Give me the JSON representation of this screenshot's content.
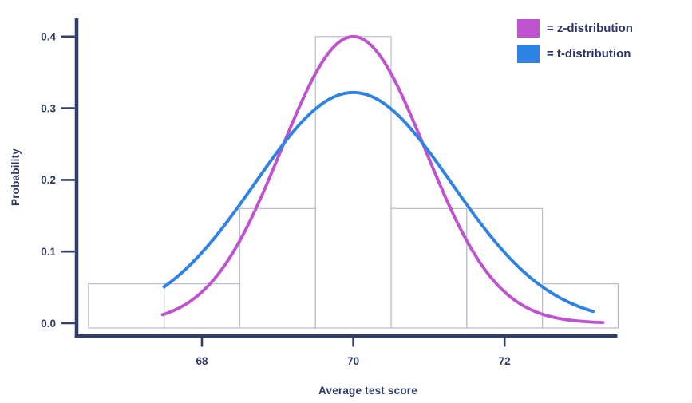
{
  "chart_data": {
    "type": "histogram_with_curves",
    "xlabel": "Average test score",
    "ylabel": "Probability",
    "x_ticks": [
      {
        "value": 68,
        "label": "68"
      },
      {
        "value": 70,
        "label": "70"
      },
      {
        "value": 72,
        "label": "72"
      }
    ],
    "y_ticks": [
      {
        "value": 0.0,
        "label": "0.0"
      },
      {
        "value": 0.1,
        "label": "0.1"
      },
      {
        "value": 0.2,
        "label": "0.2"
      },
      {
        "value": 0.3,
        "label": "0.3"
      },
      {
        "value": 0.4,
        "label": "0.4"
      }
    ],
    "xlim": [
      66.3,
      73.6
    ],
    "ylim": [
      0,
      0.425
    ],
    "grid": false,
    "histogram": {
      "bin_edges": [
        66.5,
        67.5,
        68.5,
        69.5,
        70.5,
        71.5,
        72.5,
        73.5
      ],
      "values": [
        0.055,
        0.055,
        0.16,
        0.4,
        0.16,
        0.16,
        0.055
      ],
      "outline_color": "#b6bcd2",
      "fill": "none"
    },
    "curves": [
      {
        "name": "z-distribution",
        "color": "#bf52cf",
        "mean": 70,
        "sd": 0.95,
        "peak": 0.4,
        "x_range": [
          67.48,
          73.3
        ]
      },
      {
        "name": "t-distribution",
        "color": "#2e82e4",
        "mean": 70,
        "sd": 1.3,
        "peak": 0.322,
        "x_range": [
          67.5,
          73.17
        ]
      }
    ],
    "legend": {
      "position": "top-right",
      "items": [
        {
          "label": "= z-distribution",
          "color": "#bf52cf"
        },
        {
          "label": "= t-distribution",
          "color": "#2e82e4"
        }
      ]
    },
    "axis_color": "#333f69",
    "text_color": "#2e3a66"
  }
}
